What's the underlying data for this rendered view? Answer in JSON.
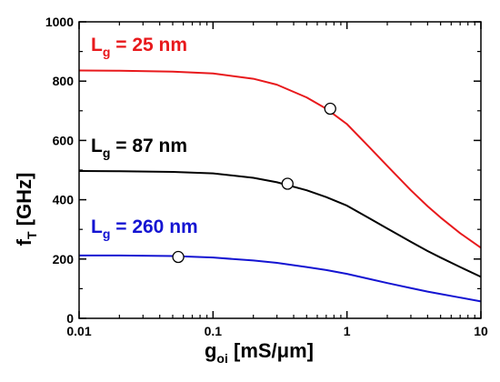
{
  "chart_data": {
    "type": "line",
    "xlabel": {
      "main": "g",
      "sub": "oi",
      "units": " [mS/μm]"
    },
    "ylabel": {
      "main": "f",
      "sub": "T",
      "units": " [GHz]"
    },
    "xscale": "log",
    "xlim": [
      0.01,
      10
    ],
    "ylim": [
      0,
      1000
    ],
    "x_ticks": [
      {
        "value": 0.01,
        "label": "0.01"
      },
      {
        "value": 0.1,
        "label": "0.1"
      },
      {
        "value": 1,
        "label": "1"
      },
      {
        "value": 10,
        "label": "10"
      }
    ],
    "y_ticks": [
      {
        "value": 0,
        "label": "0"
      },
      {
        "value": 200,
        "label": "200"
      },
      {
        "value": 400,
        "label": "400"
      },
      {
        "value": 600,
        "label": "600"
      },
      {
        "value": 800,
        "label": "800"
      },
      {
        "value": 1000,
        "label": "1000"
      }
    ],
    "grid": false,
    "legend": "none",
    "series": [
      {
        "label_main": "L",
        "label_sub": "g",
        "label_rest": " = 25 nm",
        "color": "#e8191c",
        "x": [
          0.01,
          0.02,
          0.05,
          0.1,
          0.2,
          0.3,
          0.5,
          0.7,
          1,
          1.5,
          2,
          3,
          4,
          5,
          7,
          10
        ],
        "y": [
          836,
          835,
          832,
          826,
          808,
          788,
          745,
          707,
          655,
          573,
          514,
          432,
          378,
          340,
          287,
          238
        ],
        "marker": {
          "x": 0.75,
          "y": 707
        }
      },
      {
        "label_main": "L",
        "label_sub": "g",
        "label_rest": " = 87 nm",
        "color": "#000000",
        "x": [
          0.01,
          0.02,
          0.05,
          0.1,
          0.2,
          0.3,
          0.5,
          0.7,
          1,
          1.5,
          2,
          3,
          4,
          5,
          7,
          10
        ],
        "y": [
          497,
          496,
          494,
          489,
          474,
          459,
          432,
          409,
          380,
          335,
          303,
          258,
          227,
          205,
          173,
          140
        ],
        "marker": {
          "x": 0.36,
          "y": 454
        }
      },
      {
        "label_main": "L",
        "label_sub": "g",
        "label_rest": " = 260 nm",
        "color": "#1414d2",
        "x": [
          0.01,
          0.02,
          0.05,
          0.1,
          0.2,
          0.3,
          0.5,
          0.7,
          1,
          1.5,
          2,
          3,
          4,
          5,
          7,
          10
        ],
        "y": [
          212,
          212,
          210,
          205,
          195,
          187,
          173,
          163,
          150,
          132,
          119,
          102,
          90,
          82,
          70,
          57
        ],
        "marker": {
          "x": 0.055,
          "y": 207
        }
      }
    ]
  }
}
